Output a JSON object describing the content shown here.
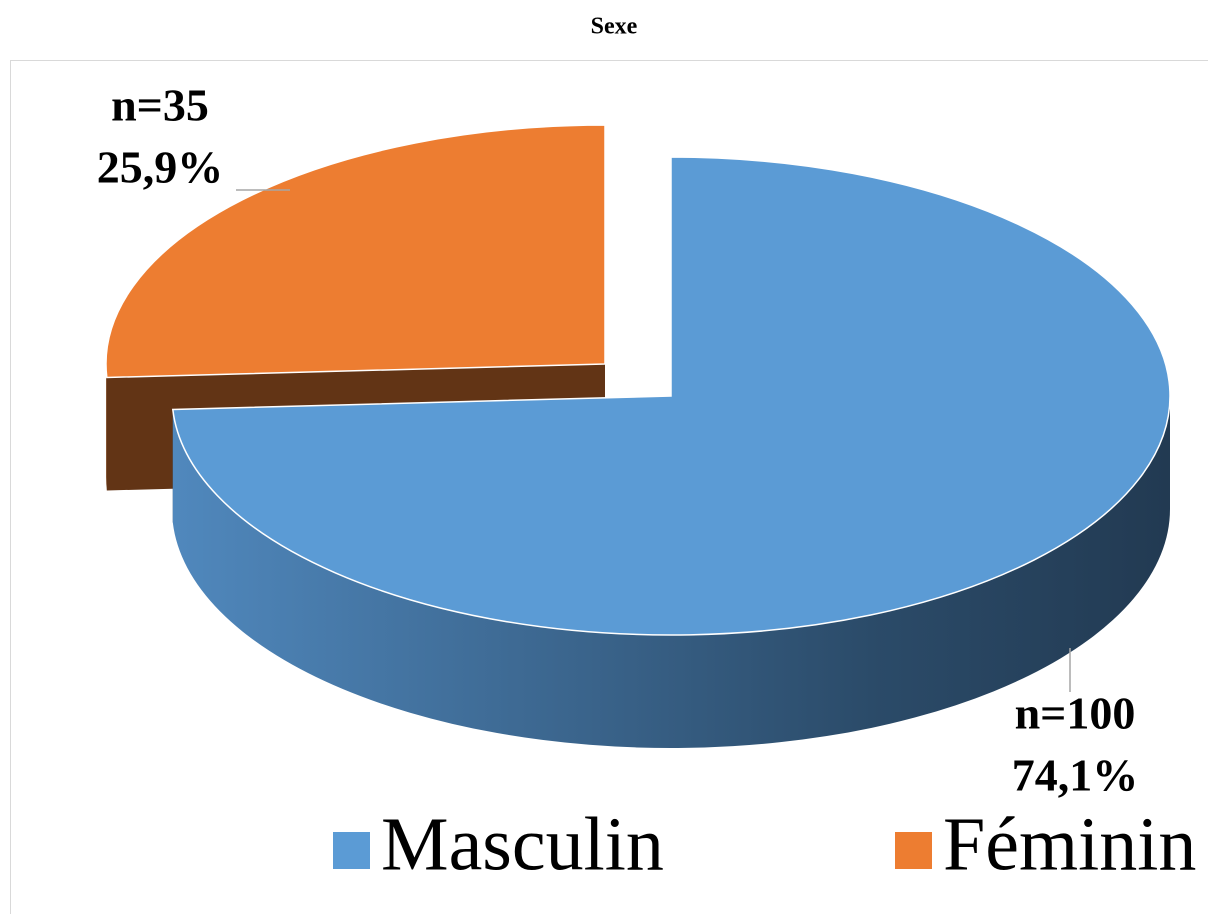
{
  "chart_data": {
    "type": "pie",
    "title": "Sexe",
    "categories": [
      "Masculin",
      "Féminin"
    ],
    "values": [
      74.1,
      25.9
    ],
    "value_labels": [
      "74,1%",
      "25,9%"
    ],
    "count_labels": [
      "n=100",
      "n=35"
    ],
    "colors": [
      "#5b9bd5",
      "#ed7d31"
    ],
    "legend": "bottom"
  }
}
